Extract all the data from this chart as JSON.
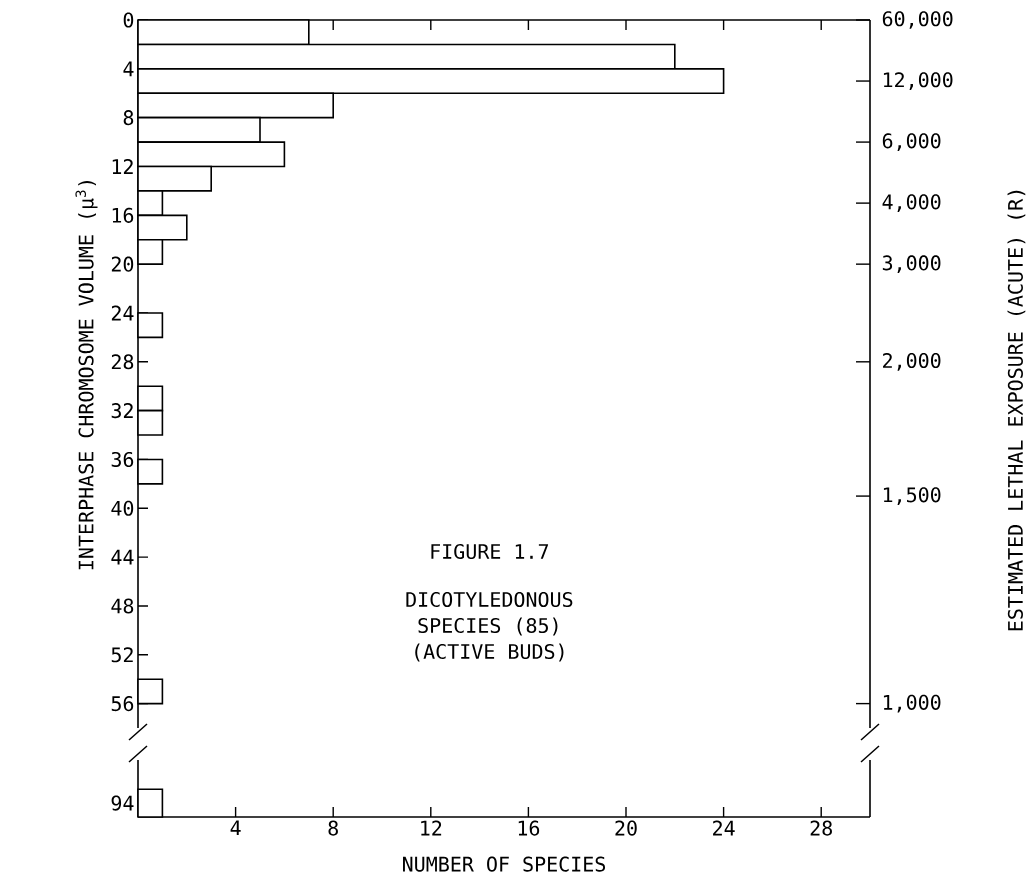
{
  "chart_data": [
    {
      "type": "histogram",
      "orientation": "horizontal",
      "color": "#000000",
      "bins": [
        0,
        2,
        4,
        6,
        8,
        10,
        12,
        14,
        16,
        18,
        20,
        22,
        24,
        26,
        28,
        30,
        32,
        34,
        36,
        38,
        40,
        42,
        44,
        46,
        48,
        50,
        52,
        54,
        56
      ],
      "values": [
        7,
        22,
        24,
        8,
        5,
        6,
        3,
        1,
        2,
        1,
        0,
        0,
        1,
        0,
        0,
        1,
        1,
        0,
        1,
        0,
        0,
        0,
        0,
        0,
        0,
        0,
        0,
        1
      ],
      "xlim": [
        0,
        30
      ],
      "xticks": [
        4,
        8,
        12,
        16,
        20,
        24,
        28
      ],
      "ylim": [
        58,
        0
      ],
      "yticks": [
        0,
        4,
        8,
        12,
        16,
        20,
        24,
        28,
        32,
        36,
        40,
        44,
        48,
        52,
        56
      ],
      "ylabel": "INTERPHASE CHROMOSOME VOLUME (μ$^{3}$)",
      "y2label": "ESTIMATED LETHAL EXPOSURE (ACUTE) (R)",
      "tick_labels": "y",
      "annotations": [
        "FIGURE 1.7",
        "DICOTYLEDONOUS",
        "SPECIES (85)",
        "(ACTIVE BUDS)",
        "60,000",
        "12,000",
        "6,000",
        "4,000",
        "3,000",
        "2,000",
        "1,500",
        "1,000"
      ]
    },
    {
      "type": "bar",
      "orientation": "horizontal",
      "color": "#000000",
      "categories": [
        "94"
      ],
      "values": [
        1
      ],
      "xlim": [
        0,
        30
      ],
      "xticks": [
        4,
        8,
        12,
        16,
        20,
        24,
        28
      ],
      "xlabel": "NUMBER OF SPECIES"
    }
  ]
}
